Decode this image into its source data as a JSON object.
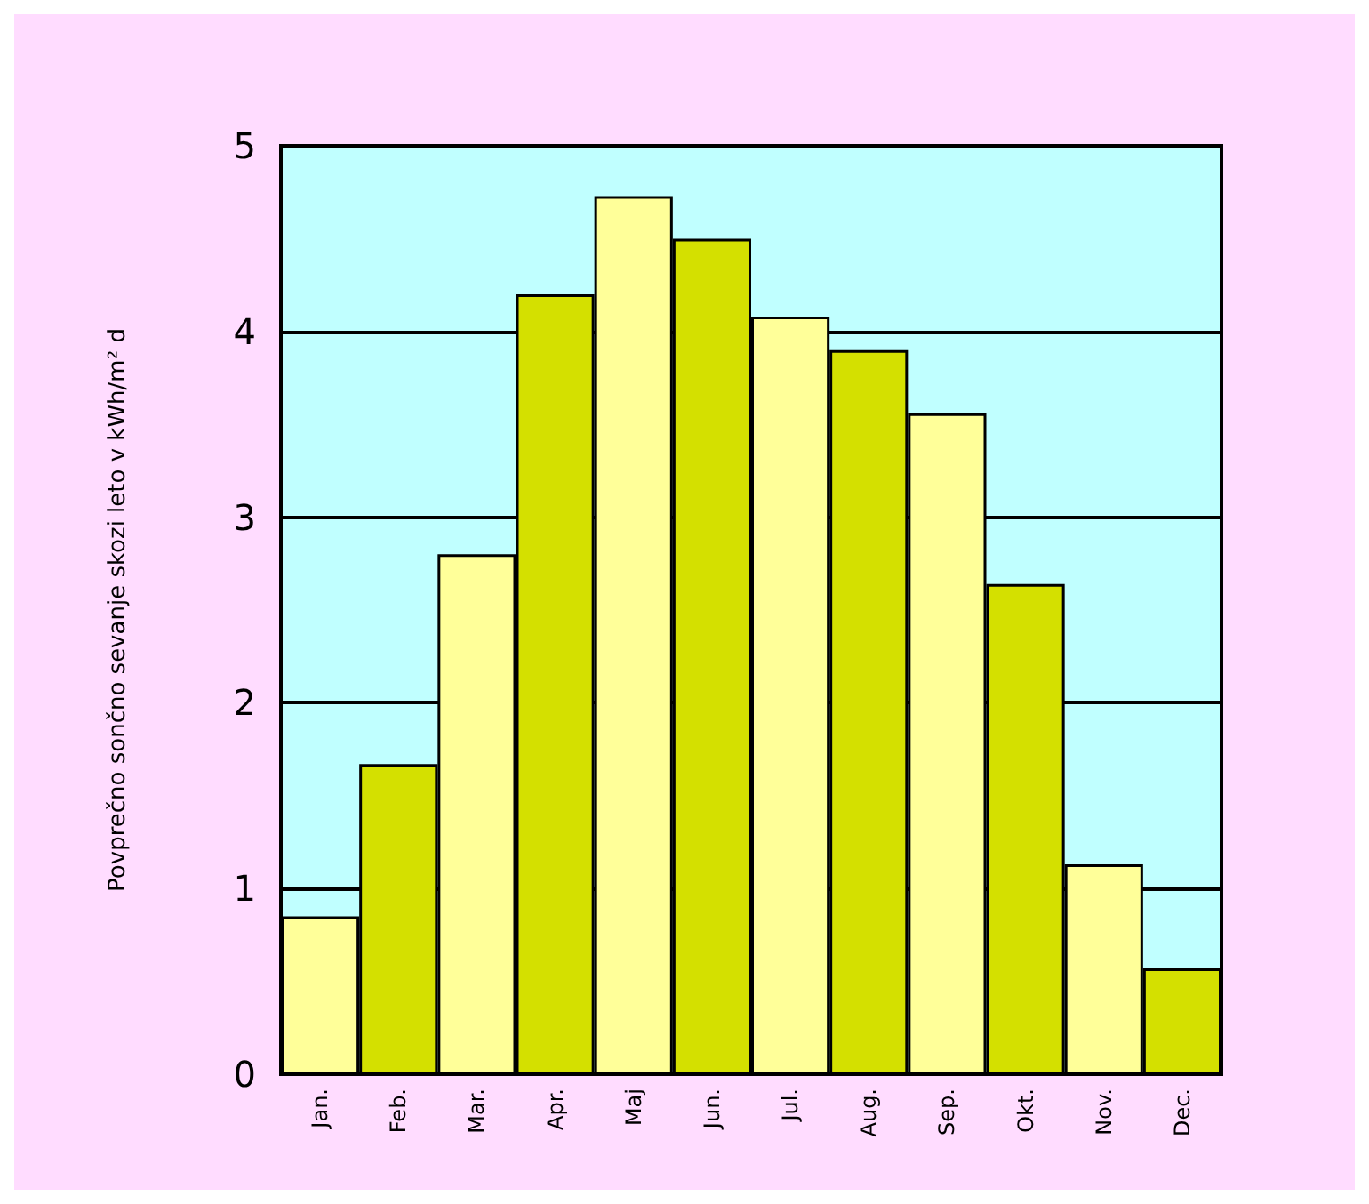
{
  "chart_data": {
    "type": "bar",
    "ylabel": "Povprečno sončno sevanje skozi leto v kWh/m² d",
    "categories": [
      "Jan.",
      "Feb.",
      "Mar.",
      "Apr.",
      "Maj",
      "Jun.",
      "Jul.",
      "Aug.",
      "Sep.",
      "Okt.",
      "Nov.",
      "Dec."
    ],
    "values": [
      0.85,
      1.67,
      2.8,
      4.2,
      4.73,
      4.5,
      4.08,
      3.9,
      3.56,
      2.64,
      1.13,
      0.57
    ],
    "colors": [
      "#ffff99",
      "#d4e000",
      "#ffff99",
      "#d4e000",
      "#ffff99",
      "#d4e000",
      "#ffff99",
      "#d4e000",
      "#ffff99",
      "#d4e000",
      "#ffff99",
      "#d4e000"
    ],
    "ylim": [
      0,
      5
    ],
    "yticks": [
      0,
      1,
      2,
      3,
      4,
      5
    ],
    "grid": "y"
  }
}
